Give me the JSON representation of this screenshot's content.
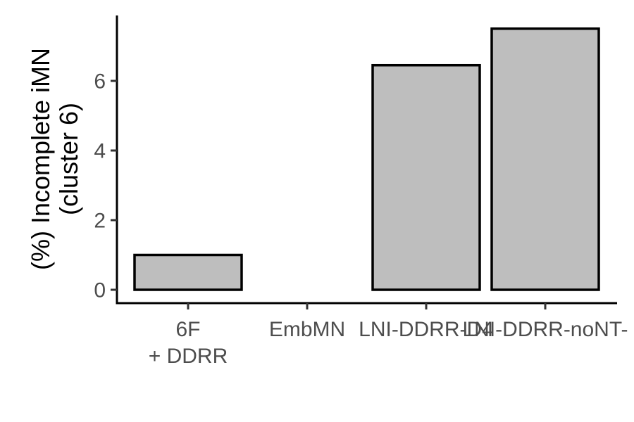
{
  "chart_data": {
    "type": "bar",
    "categories": [
      [
        "6F",
        "+ DDRR"
      ],
      [
        "EmbMN"
      ],
      [
        "LNI-DDRR-D4"
      ],
      [
        "LNI-DDRR-noNT-"
      ]
    ],
    "values": [
      1.0,
      0.0,
      6.45,
      7.5
    ],
    "ylabel": [
      "(%) Incomplete iMN",
      "(cluster 6)"
    ],
    "ylim": [
      0,
      7.8
    ],
    "yticks": [
      0,
      2,
      4,
      6
    ],
    "bar_fill": "#bebebe",
    "bar_stroke": "#000000",
    "grid": false,
    "legend": "none"
  }
}
